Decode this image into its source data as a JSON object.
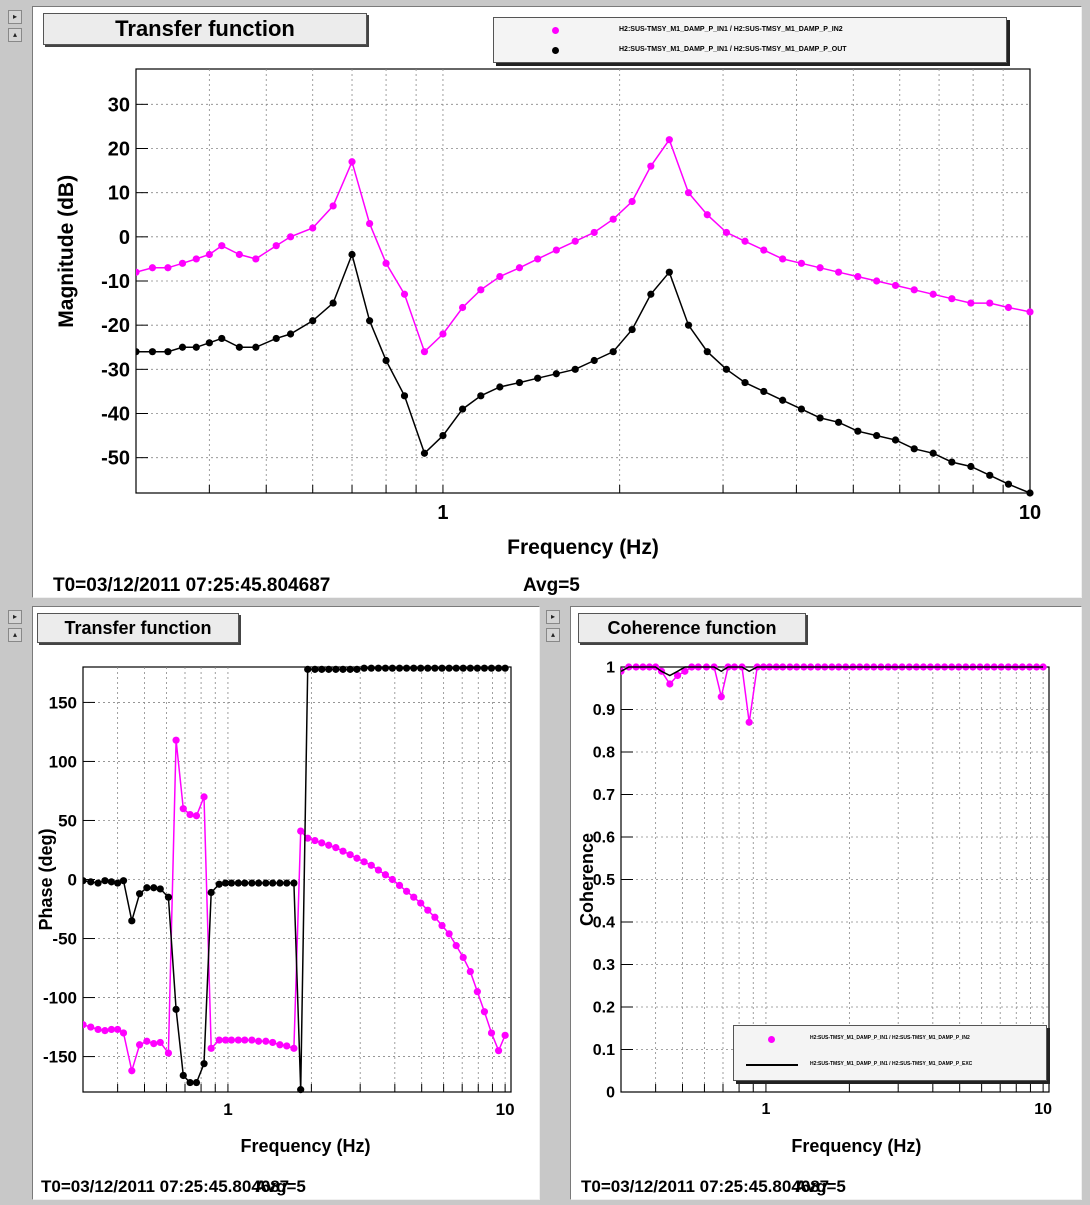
{
  "top_panel": {
    "title": "Transfer function",
    "footer_t0": "T0=03/12/2011 07:25:45.804687",
    "footer_avg": "Avg=5",
    "legend": [
      {
        "label": "H2:SUS-TMSY_M1_DAMP_P_IN1 / H2:SUS-TMSY_M1_DAMP_P_IN2",
        "color": "#ff00ff",
        "marker": "dot"
      },
      {
        "label": "H2:SUS-TMSY_M1_DAMP_P_IN1 / H2:SUS-TMSY_M1_DAMP_P_OUT",
        "color": "#000000",
        "marker": "dot"
      }
    ]
  },
  "bottom_left_panel": {
    "title": "Transfer function",
    "footer_t0": "T0=03/12/2011 07:25:45.804687",
    "footer_avg": "Avg=5"
  },
  "bottom_right_panel": {
    "title": "Coherence function",
    "footer_t0": "T0=03/12/2011 07:25:45.804687",
    "footer_avg": "Avg=5",
    "legend": [
      {
        "label": "H2:SUS-TMSY_M1_DAMP_P_IN1 / H2:SUS-TMSY_M1_DAMP_P_IN2",
        "color": "#ff00ff",
        "marker": "dot"
      },
      {
        "label": "H2:SUS-TMSY_M1_DAMP_P_IN1 / H2:SUS-TMSY_M1_DAMP_P_EXC",
        "color": "#000000",
        "marker": "line"
      }
    ]
  },
  "chart_data": [
    {
      "type": "line",
      "title": "Transfer function",
      "xlabel": "Frequency (Hz)",
      "ylabel": "Magnitude (dB)",
      "xscale": "log",
      "xlim": [
        0.3,
        10
      ],
      "ylim": [
        -58,
        38
      ],
      "xticks": [
        1,
        10
      ],
      "yticks": [
        30,
        20,
        10,
        0,
        -10,
        -20,
        -30,
        -40,
        -50
      ],
      "grid": true,
      "legend_position": "top-right",
      "x": [
        0.3,
        0.32,
        0.34,
        0.36,
        0.38,
        0.4,
        0.42,
        0.45,
        0.48,
        0.52,
        0.55,
        0.6,
        0.65,
        0.7,
        0.75,
        0.8,
        0.86,
        0.93,
        1.0,
        1.08,
        1.16,
        1.25,
        1.35,
        1.45,
        1.56,
        1.68,
        1.81,
        1.95,
        2.1,
        2.26,
        2.43,
        2.62,
        2.82,
        3.04,
        3.27,
        3.52,
        3.79,
        4.08,
        4.39,
        4.72,
        5.09,
        5.48,
        5.9,
        6.35,
        6.84,
        7.36,
        7.93,
        8.54,
        9.19,
        10.0
      ],
      "series": [
        {
          "name": "H2:SUS-TMSY_M1_DAMP_P_IN1 / H2:SUS-TMSY_M1_DAMP_P_IN2",
          "color": "#ff00ff",
          "values": [
            -8,
            -7,
            -7,
            -6,
            -5,
            -4,
            -2,
            -4,
            -5,
            -2,
            0,
            2,
            7,
            17,
            3,
            -6,
            -13,
            -26,
            -22,
            -16,
            -12,
            -9,
            -7,
            -5,
            -3,
            -1,
            1,
            4,
            8,
            16,
            22,
            10,
            5,
            1,
            -1,
            -3,
            -5,
            -6,
            -7,
            -8,
            -9,
            -10,
            -11,
            -12,
            -13,
            -14,
            -15,
            -15,
            -16,
            -17
          ]
        },
        {
          "name": "H2:SUS-TMSY_M1_DAMP_P_IN1 / H2:SUS-TMSY_M1_DAMP_P_OUT",
          "color": "#000000",
          "values": [
            -26,
            -26,
            -26,
            -25,
            -25,
            -24,
            -23,
            -25,
            -25,
            -23,
            -22,
            -19,
            -15,
            -4,
            -19,
            -28,
            -36,
            -49,
            -45,
            -39,
            -36,
            -34,
            -33,
            -32,
            -31,
            -30,
            -28,
            -26,
            -21,
            -13,
            -8,
            -20,
            -26,
            -30,
            -33,
            -35,
            -37,
            -39,
            -41,
            -42,
            -44,
            -45,
            -46,
            -48,
            -49,
            -51,
            -52,
            -54,
            -56,
            -58
          ]
        }
      ]
    },
    {
      "type": "line",
      "title": "Transfer function",
      "xlabel": "Frequency (Hz)",
      "ylabel": "Phase (deg)",
      "xscale": "log",
      "xlim": [
        0.3,
        10.5
      ],
      "ylim": [
        -180,
        180
      ],
      "xticks": [
        1,
        10
      ],
      "yticks": [
        150,
        100,
        50,
        0,
        -50,
        -100,
        -150
      ],
      "grid": true,
      "x": [
        0.3,
        0.32,
        0.34,
        0.36,
        0.38,
        0.4,
        0.42,
        0.45,
        0.48,
        0.51,
        0.54,
        0.57,
        0.61,
        0.65,
        0.69,
        0.73,
        0.77,
        0.82,
        0.87,
        0.93,
        0.98,
        1.03,
        1.09,
        1.15,
        1.22,
        1.29,
        1.37,
        1.45,
        1.54,
        1.63,
        1.73,
        1.83,
        1.94,
        2.06,
        2.18,
        2.31,
        2.45,
        2.6,
        2.76,
        2.92,
        3.1,
        3.29,
        3.49,
        3.7,
        3.92,
        4.16,
        4.41,
        4.68,
        4.96,
        5.26,
        5.58,
        5.92,
        6.28,
        6.66,
        7.06,
        7.49,
        7.94,
        8.42,
        8.93,
        9.47,
        10.0
      ],
      "series": [
        {
          "name": "H2:SUS-TMSY_M1_DAMP_P_IN1 / H2:SUS-TMSY_M1_DAMP_P_IN2",
          "color": "#ff00ff",
          "values": [
            -123,
            -125,
            -127,
            -128,
            -127,
            -127,
            -130,
            -162,
            -140,
            -137,
            -139,
            -138,
            -147,
            118,
            60,
            55,
            54,
            70,
            -143,
            -136,
            -136,
            -136,
            -136,
            -136,
            -136,
            -137,
            -137,
            -138,
            -140,
            -141,
            -143,
            41,
            35,
            33,
            31,
            29,
            27,
            24,
            21,
            18,
            15,
            12,
            8,
            4,
            0,
            -5,
            -10,
            -15,
            -20,
            -26,
            -32,
            -39,
            -46,
            -56,
            -66,
            -78,
            -95,
            -112,
            -130,
            -145,
            -132
          ]
        },
        {
          "name": "H2:SUS-TMSY_M1_DAMP_P_IN1 / H2:SUS-TMSY_M1_DAMP_P_OUT",
          "color": "#000000",
          "values": [
            -1,
            -2,
            -3,
            -1,
            -2,
            -3,
            -1,
            -35,
            -12,
            -7,
            -7,
            -8,
            -15,
            -110,
            -166,
            -172,
            -172,
            -156,
            -11,
            -4,
            -3,
            -3,
            -3,
            -3,
            -3,
            -3,
            -3,
            -3,
            -3,
            -3,
            -3,
            -178,
            178,
            178,
            178,
            178,
            178,
            178,
            178,
            178,
            179,
            179,
            179,
            179,
            179,
            179,
            179,
            179,
            179,
            179,
            179,
            179,
            179,
            179,
            179,
            179,
            179,
            179,
            179,
            179,
            179
          ]
        }
      ]
    },
    {
      "type": "line",
      "title": "Coherence function",
      "xlabel": "Frequency (Hz)",
      "ylabel": "Coherence",
      "xscale": "log",
      "xlim": [
        0.3,
        10.5
      ],
      "ylim": [
        0,
        1
      ],
      "xticks": [
        1,
        10
      ],
      "yticks": [
        1,
        0.9,
        0.8,
        0.7,
        0.6,
        0.5,
        0.4,
        0.3,
        0.2,
        0.1,
        0
      ],
      "grid": true,
      "legend_position": "bottom-right",
      "x": [
        0.3,
        0.32,
        0.34,
        0.36,
        0.38,
        0.4,
        0.42,
        0.45,
        0.48,
        0.51,
        0.54,
        0.57,
        0.61,
        0.65,
        0.69,
        0.73,
        0.77,
        0.82,
        0.87,
        0.93,
        0.98,
        1.03,
        1.09,
        1.15,
        1.22,
        1.29,
        1.37,
        1.45,
        1.54,
        1.63,
        1.73,
        1.83,
        1.94,
        2.06,
        2.18,
        2.31,
        2.45,
        2.6,
        2.76,
        2.92,
        3.1,
        3.29,
        3.49,
        3.7,
        3.92,
        4.16,
        4.41,
        4.68,
        4.96,
        5.26,
        5.58,
        5.92,
        6.28,
        6.66,
        7.06,
        7.49,
        7.94,
        8.42,
        8.93,
        9.47,
        10.0
      ],
      "series": [
        {
          "name": "H2:SUS-TMSY_M1_DAMP_P_IN1 / H2:SUS-TMSY_M1_DAMP_P_IN2",
          "color": "#ff00ff",
          "values": [
            0.99,
            1.0,
            1.0,
            1.0,
            1.0,
            1.0,
            0.99,
            0.96,
            0.98,
            0.99,
            1.0,
            1.0,
            1.0,
            1.0,
            0.93,
            1.0,
            1.0,
            1.0,
            0.87,
            1.0,
            1.0,
            1.0,
            1.0,
            1.0,
            1.0,
            1.0,
            1.0,
            1.0,
            1.0,
            1.0,
            1.0,
            1.0,
            1.0,
            1.0,
            1.0,
            1.0,
            1.0,
            1.0,
            1.0,
            1.0,
            1.0,
            1.0,
            1.0,
            1.0,
            1.0,
            1.0,
            1.0,
            1.0,
            1.0,
            1.0,
            1.0,
            1.0,
            1.0,
            1.0,
            1.0,
            1.0,
            1.0,
            1.0,
            1.0,
            1.0,
            1.0
          ]
        },
        {
          "name": "H2:SUS-TMSY_M1_DAMP_P_IN1 / H2:SUS-TMSY_M1_DAMP_P_EXC",
          "color": "#000000",
          "values": [
            0.99,
            1.0,
            1.0,
            1.0,
            1.0,
            1.0,
            0.99,
            0.98,
            0.99,
            1.0,
            1.0,
            1.0,
            1.0,
            1.0,
            0.99,
            1.0,
            1.0,
            1.0,
            0.99,
            1.0,
            1.0,
            1.0,
            1.0,
            1.0,
            1.0,
            1.0,
            1.0,
            1.0,
            1.0,
            1.0,
            1.0,
            1.0,
            1.0,
            1.0,
            1.0,
            1.0,
            1.0,
            1.0,
            1.0,
            1.0,
            1.0,
            1.0,
            1.0,
            1.0,
            1.0,
            1.0,
            1.0,
            1.0,
            1.0,
            1.0,
            1.0,
            1.0,
            1.0,
            1.0,
            1.0,
            1.0,
            1.0,
            1.0,
            1.0,
            1.0,
            1.0
          ]
        }
      ]
    }
  ]
}
